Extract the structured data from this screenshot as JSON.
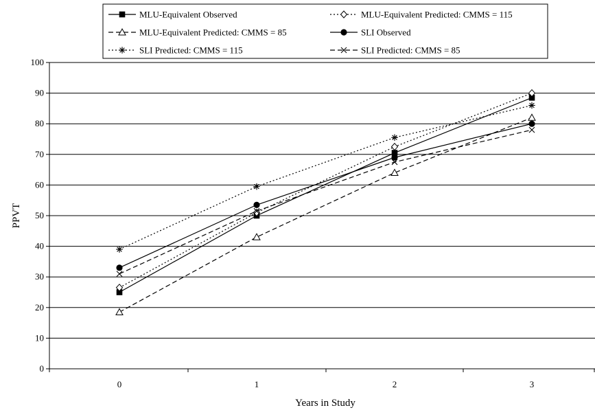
{
  "chart_data": {
    "type": "line",
    "xlabel": "Years in Study",
    "ylabel": "PPVT",
    "x": [
      "0",
      "1",
      "2",
      "3"
    ],
    "ylim": [
      0,
      100
    ],
    "yticks": [
      "0",
      "10",
      "20",
      "30",
      "40",
      "50",
      "60",
      "70",
      "80",
      "90",
      "100"
    ],
    "grid": "horizontal",
    "legend_position": "top",
    "series": [
      {
        "name": "MLU-Equivalent Observed",
        "values": [
          25,
          50,
          70.5,
          88.5
        ],
        "marker": "filled-square",
        "dash": "solid"
      },
      {
        "name": "MLU-Equivalent Predicted: CMMS = 115",
        "values": [
          26.5,
          51,
          72.5,
          90
        ],
        "marker": "open-diamond",
        "dash": "dotted"
      },
      {
        "name": "MLU-Equivalent Predicted: CMMS = 85",
        "values": [
          18.5,
          43,
          64,
          82
        ],
        "marker": "open-triangle",
        "dash": "dashed"
      },
      {
        "name": "SLI Observed",
        "values": [
          33,
          53.5,
          69,
          80
        ],
        "marker": "filled-circle",
        "dash": "solid"
      },
      {
        "name": "SLI Predicted: CMMS = 115",
        "values": [
          39,
          59.5,
          75.5,
          86
        ],
        "marker": "asterisk",
        "dash": "dotted"
      },
      {
        "name": "SLI Predicted: CMMS = 85",
        "values": [
          31,
          51.5,
          67.5,
          78
        ],
        "marker": "x",
        "dash": "dashed"
      }
    ]
  }
}
